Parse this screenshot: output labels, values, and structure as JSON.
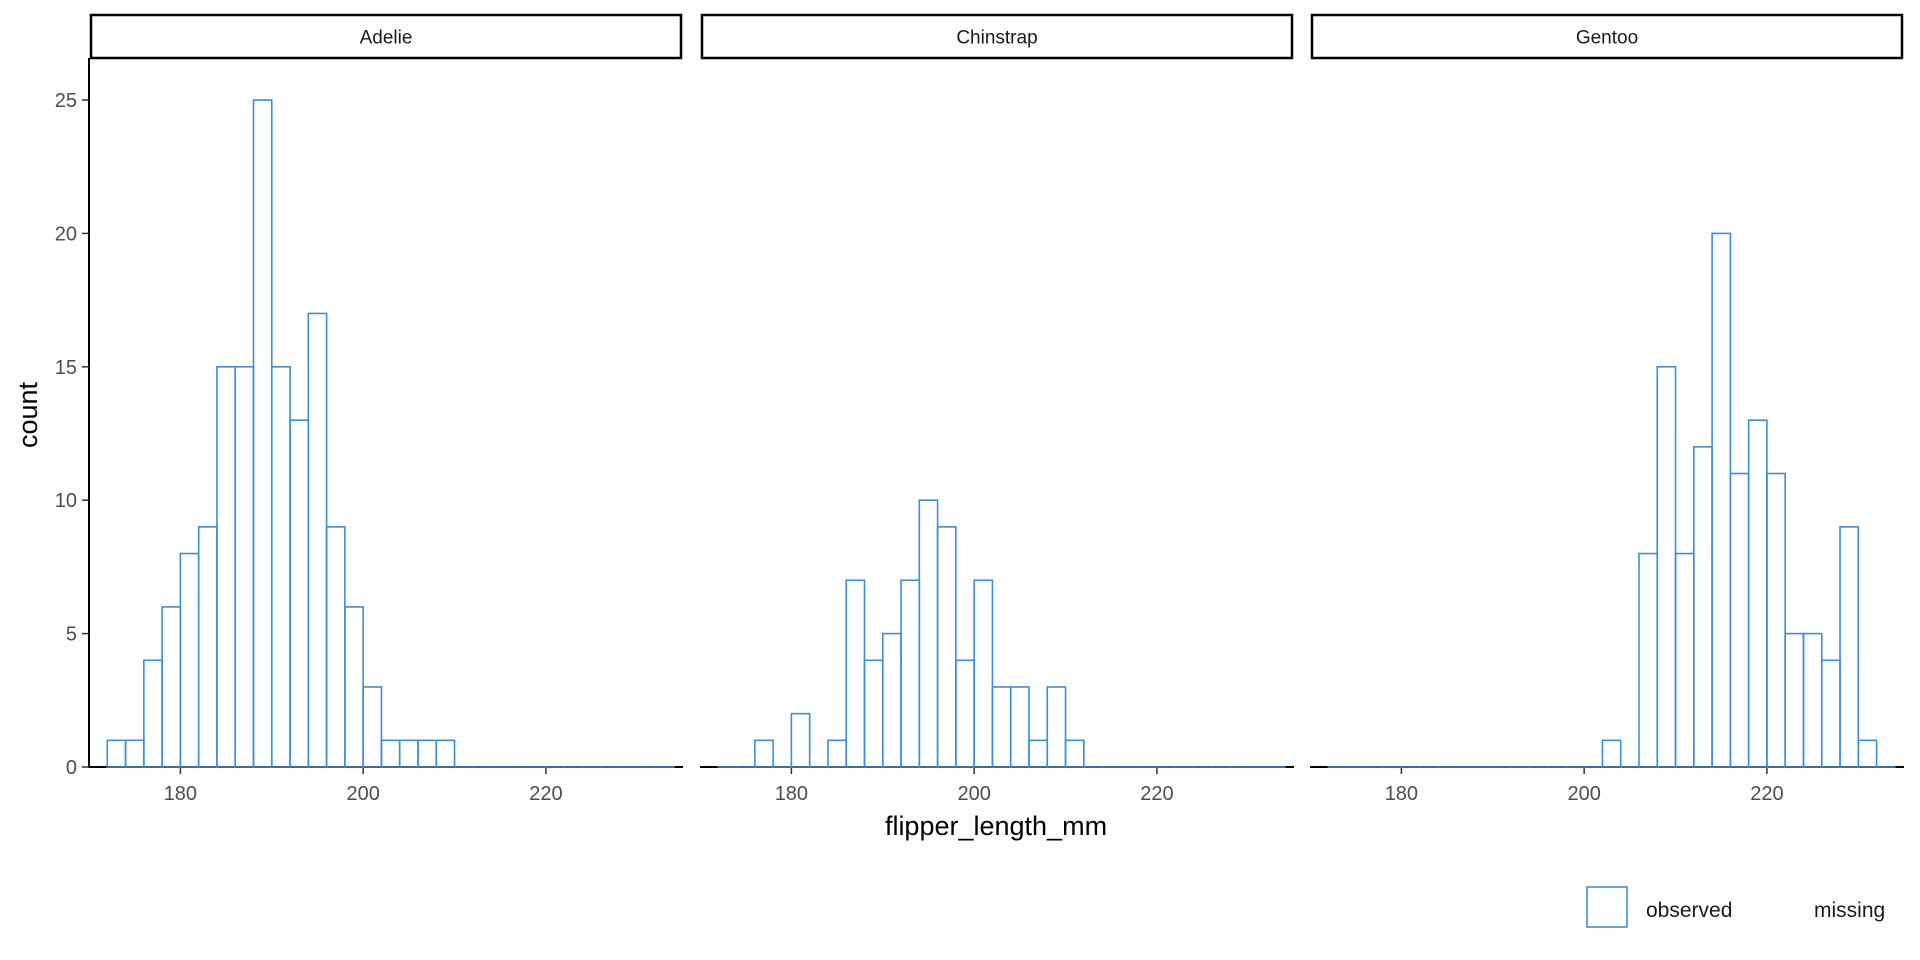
{
  "chart_data": {
    "type": "histogram",
    "facet_by": "species",
    "xlabel": "flipper_length_mm",
    "ylabel": "count",
    "x_ticks": [
      180,
      200,
      220
    ],
    "y_ticks": [
      0,
      5,
      10,
      15,
      20,
      25
    ],
    "xlim": [
      170,
      235
    ],
    "ylim": [
      0,
      26.5
    ],
    "bin_start": 172,
    "bin_width": 2,
    "bar_color": "#3a8fd6",
    "legend": {
      "position": "bottom-right",
      "entries": [
        "observed",
        "missing"
      ]
    },
    "panels": [
      {
        "name": "Adelie",
        "counts": [
          1,
          1,
          4,
          6,
          8,
          9,
          15,
          15,
          25,
          15,
          13,
          17,
          9,
          6,
          3,
          1,
          1,
          1,
          1,
          0,
          0,
          0,
          0,
          0,
          0,
          0,
          0,
          0,
          0,
          0,
          0
        ]
      },
      {
        "name": "Chinstrap",
        "counts": [
          0,
          0,
          1,
          0,
          2,
          0,
          1,
          7,
          4,
          5,
          7,
          10,
          9,
          4,
          7,
          3,
          3,
          1,
          3,
          1,
          0,
          0,
          0,
          0,
          0,
          0,
          0,
          0,
          0,
          0,
          0
        ]
      },
      {
        "name": "Gentoo",
        "counts": [
          0,
          0,
          0,
          0,
          0,
          0,
          0,
          0,
          0,
          0,
          0,
          0,
          0,
          0,
          0,
          1,
          0,
          8,
          15,
          8,
          12,
          20,
          11,
          13,
          11,
          5,
          5,
          4,
          9,
          1,
          0
        ]
      }
    ]
  }
}
